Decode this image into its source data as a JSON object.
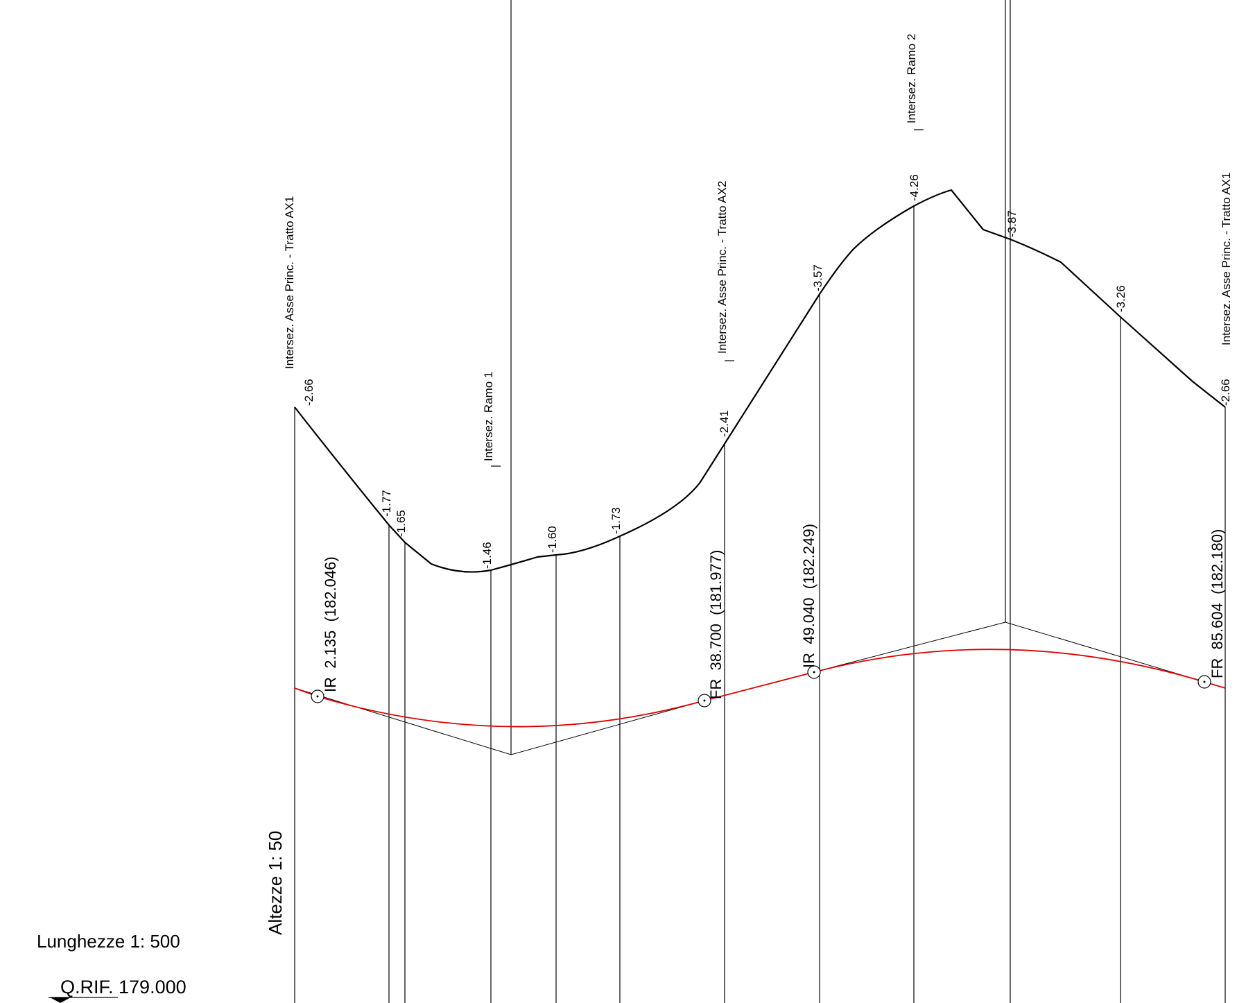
{
  "scales": {
    "heights": "Altezze 1: 50",
    "lengths": "Lunghezze 1: 500"
  },
  "reference_level": {
    "label": "Q.RIF",
    "value": ". 179.000"
  },
  "intersection_callouts": [
    "Intersez. Asse Princ. - Tratto AX1",
    "Intersez. Ramo 1",
    "Intersez. Asse Princ. - Tratto AX2",
    "Intersez. Ramo 2",
    "Intersez. Asse Princ. - Tratto AX1"
  ],
  "depth_labels": [
    "-2.66",
    "-1.77",
    "-1.65",
    "-1.46",
    "-1.60",
    "-1.73",
    "-2.41",
    "-3.57",
    "-4.26",
    "-3.87",
    "-3.26",
    "-2.66"
  ],
  "vertical_curve_points": [
    {
      "type": "IR",
      "chainage": "2.135",
      "elevation": "(182.046)"
    },
    {
      "type": "FR",
      "chainage": "38.700",
      "elevation": "(181.977)"
    },
    {
      "type": "IR",
      "chainage": "49.040",
      "elevation": "(182.249)"
    },
    {
      "type": "FR",
      "chainage": "85.604",
      "elevation": "(182.180)"
    }
  ],
  "colors": {
    "terrain": "#000000",
    "design_grade": "#e00000"
  }
}
